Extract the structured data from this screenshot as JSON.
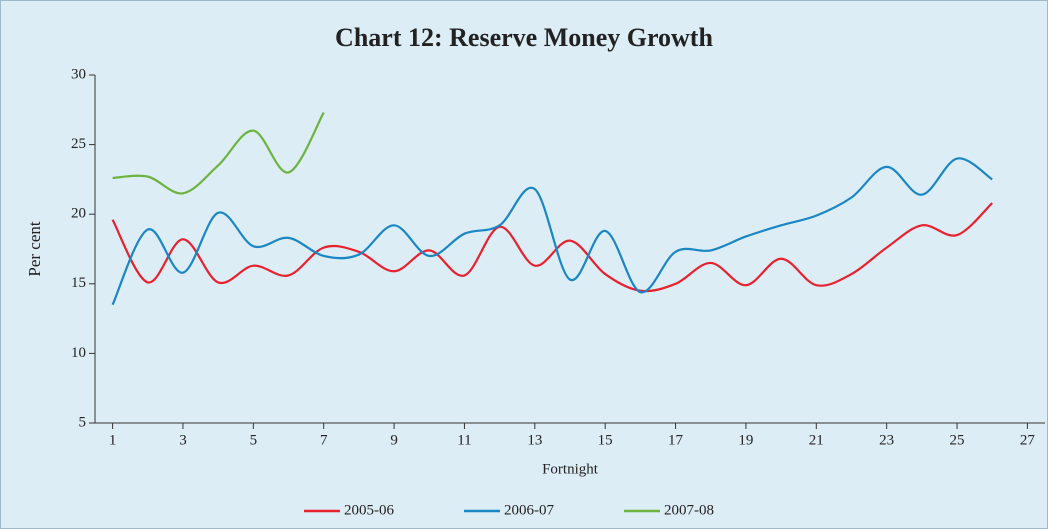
{
  "chart_data": {
    "type": "line",
    "title": "Chart 12: Reserve Money Growth",
    "xlabel": "Fortnight",
    "ylabel": "Per cent",
    "x": [
      1,
      2,
      3,
      4,
      5,
      6,
      7,
      8,
      9,
      10,
      11,
      12,
      13,
      14,
      15,
      16,
      17,
      18,
      19,
      20,
      21,
      22,
      23,
      24,
      25,
      26
    ],
    "series": [
      {
        "name": "2005-06",
        "color": "#e8212e",
        "values": [
          19.6,
          15.1,
          18.2,
          15.1,
          16.3,
          15.6,
          17.6,
          17.3,
          15.9,
          17.4,
          15.6,
          19.1,
          16.3,
          18.1,
          15.7,
          14.5,
          15.0,
          16.5,
          14.9,
          16.8,
          14.9,
          15.7,
          17.6,
          19.2,
          18.5,
          20.8
        ]
      },
      {
        "name": "2006-07",
        "color": "#1a86c4",
        "values": [
          13.5,
          18.9,
          15.8,
          20.1,
          17.7,
          18.3,
          17.0,
          17.1,
          19.2,
          17.0,
          18.6,
          19.2,
          21.8,
          15.3,
          18.8,
          14.4,
          17.3,
          17.4,
          18.4,
          19.2,
          19.9,
          21.2,
          23.4,
          21.4,
          24.0,
          22.5
        ]
      },
      {
        "name": "2007-08",
        "color": "#6db33f",
        "values": [
          22.6,
          22.7,
          21.5,
          23.5,
          26.0,
          23.0,
          27.3,
          null,
          null,
          null,
          null,
          null,
          null,
          null,
          null,
          null,
          null,
          null,
          null,
          null,
          null,
          null,
          null,
          null,
          null,
          null
        ]
      }
    ],
    "xlim": [
      0.5,
      27.5
    ],
    "xticks": [
      1,
      3,
      5,
      7,
      9,
      11,
      13,
      15,
      17,
      19,
      21,
      23,
      25,
      27
    ],
    "ylim": [
      5,
      30
    ],
    "yticks": [
      5,
      10,
      15,
      20,
      25,
      30
    ],
    "grid": false,
    "legend": "bottom",
    "smooth": true
  }
}
